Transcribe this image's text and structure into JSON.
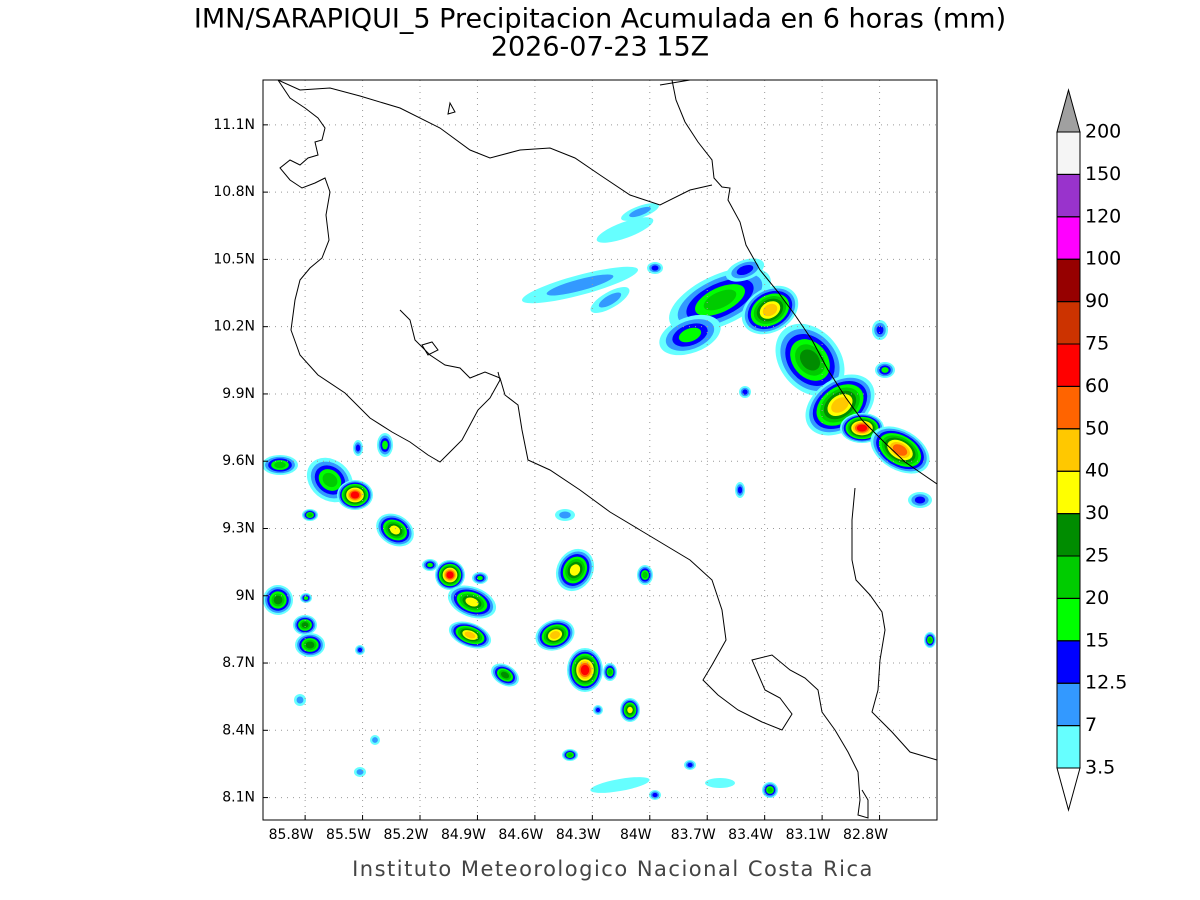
{
  "title": "IMN/SARAPIQUI_5 Precipitacion Acumulada en 6 horas (mm)",
  "subtitle": "2026-07-23 15Z",
  "map": {
    "xlim": [
      -86.02,
      -82.5
    ],
    "ylim": [
      8.0,
      11.3
    ],
    "grid": true,
    "xticks": [
      {
        "value": -85.8,
        "label": "85.8W"
      },
      {
        "value": -85.5,
        "label": "85.5W"
      },
      {
        "value": -85.2,
        "label": "85.2W"
      },
      {
        "value": -84.9,
        "label": "84.9W"
      },
      {
        "value": -84.6,
        "label": "84.6W"
      },
      {
        "value": -84.3,
        "label": "84.3W"
      },
      {
        "value": -84.0,
        "label": "84W"
      },
      {
        "value": -83.7,
        "label": "83.7W"
      },
      {
        "value": -83.4,
        "label": "83.4W"
      },
      {
        "value": -83.1,
        "label": "83.1W"
      },
      {
        "value": -82.8,
        "label": "82.8W"
      }
    ],
    "yticks": [
      {
        "value": 8.1,
        "label": "8.1N"
      },
      {
        "value": 8.4,
        "label": "8.4N"
      },
      {
        "value": 8.7,
        "label": "8.7N"
      },
      {
        "value": 9.0,
        "label": "9N"
      },
      {
        "value": 9.3,
        "label": "9.3N"
      },
      {
        "value": 9.6,
        "label": "9.6N"
      },
      {
        "value": 9.9,
        "label": "9.9N"
      },
      {
        "value": 10.2,
        "label": "10.2N"
      },
      {
        "value": 10.5,
        "label": "10.5N"
      },
      {
        "value": 10.8,
        "label": "10.8N"
      },
      {
        "value": 11.1,
        "label": "11.1N"
      }
    ]
  },
  "colorbar": {
    "levels": [
      3.5,
      7,
      12.5,
      15,
      20,
      25,
      30,
      40,
      50,
      60,
      75,
      90,
      100,
      120,
      150,
      200
    ],
    "colors": [
      "#ffffff",
      "#66ffff",
      "#3399ff",
      "#0000ff",
      "#00ff00",
      "#00cc00",
      "#008c00",
      "#ffff00",
      "#ffc800",
      "#ff6400",
      "#ff0000",
      "#cc3300",
      "#960000",
      "#ff00ff",
      "#9933cc",
      "#f5f5f5",
      "#a0a0a0"
    ]
  },
  "footer": "Instituto Meteorologico Nacional Costa Rica"
}
